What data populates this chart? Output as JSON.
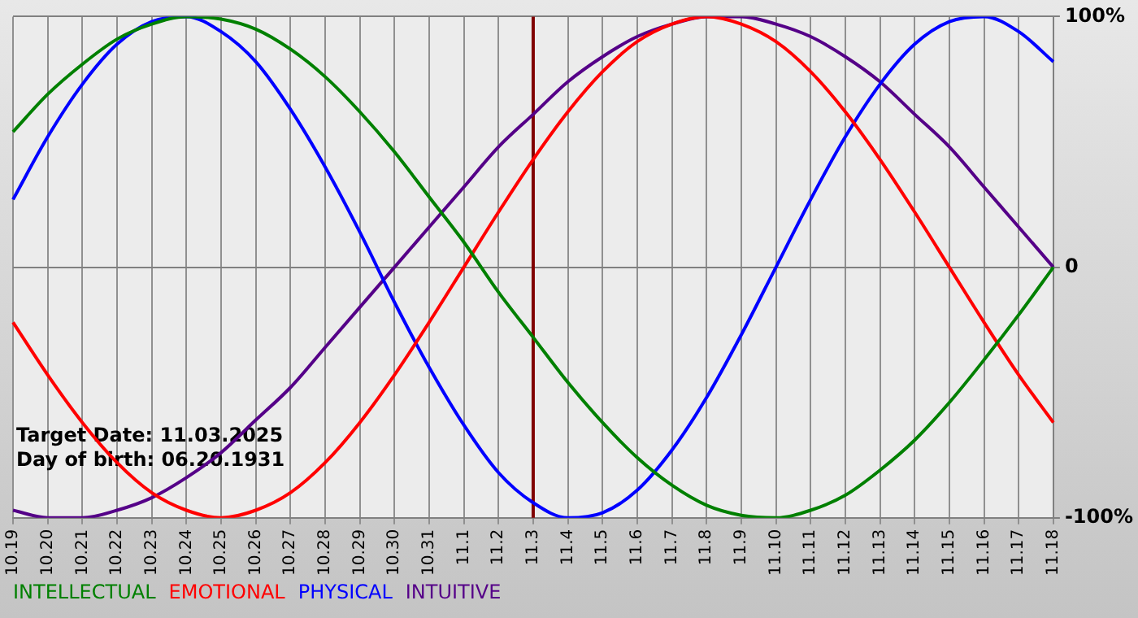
{
  "chart_data": {
    "type": "line",
    "categories": [
      "10.19",
      "10.20",
      "10.21",
      "10.22",
      "10.23",
      "10.24",
      "10.25",
      "10.26",
      "10.27",
      "10.28",
      "10.29",
      "10.30",
      "10.31",
      "11.1",
      "11.2",
      "11.3",
      "11.4",
      "11.5",
      "11.6",
      "11.7",
      "11.8",
      "11.9",
      "11.10",
      "11.11",
      "11.12",
      "11.13",
      "11.14",
      "11.15",
      "11.16",
      "11.17",
      "11.18"
    ],
    "series": [
      {
        "name": "INTELLECTUAL",
        "color": "#008000",
        "values": [
          54,
          69,
          81,
          91,
          97,
          100,
          99,
          95,
          87,
          76,
          62,
          46,
          28,
          10,
          -10,
          -28,
          -46,
          -62,
          -76,
          -87,
          -95,
          -99,
          -100,
          -97,
          -91,
          -81,
          -69,
          -54,
          -37,
          -19,
          0
        ]
      },
      {
        "name": "EMOTIONAL",
        "color": "#ff0000",
        "values": [
          -22,
          -43,
          -62,
          -78,
          -90,
          -97,
          -100,
          -97,
          -90,
          -78,
          -62,
          -43,
          -22,
          0,
          22,
          43,
          62,
          78,
          90,
          97,
          100,
          97,
          90,
          78,
          62,
          43,
          22,
          0,
          -22,
          -43,
          -62
        ]
      },
      {
        "name": "PHYSICAL",
        "color": "#0000ff",
        "values": [
          27,
          52,
          73,
          89,
          98,
          100,
          94,
          82,
          63,
          40,
          14,
          -14,
          -40,
          -63,
          -82,
          -94,
          -100,
          -98,
          -89,
          -73,
          -52,
          -27,
          0,
          27,
          52,
          73,
          89,
          98,
          100,
          94,
          82
        ]
      },
      {
        "name": "INTUITIVE",
        "color": "#550088",
        "values": [
          -97,
          -100,
          -100,
          -97,
          -92,
          -84,
          -74,
          -61,
          -48,
          -32,
          -16,
          0,
          16,
          32,
          48,
          61,
          74,
          84,
          92,
          97,
          100,
          100,
          97,
          92,
          84,
          74,
          61,
          48,
          32,
          16,
          0
        ]
      }
    ],
    "ylim": [
      -100,
      100
    ],
    "yticks": [
      {
        "value": -100,
        "label": "-100%"
      },
      0,
      {
        "value": 100,
        "label": "100%"
      }
    ],
    "ref_lines": [
      {
        "axis": "x",
        "value": "11.3",
        "color": "#800000"
      }
    ],
    "annotations": [
      "Target Date: 11.03.2025",
      "Day of birth: 06.20.1931"
    ],
    "grid": true,
    "legend": "bottom",
    "marker": "none"
  }
}
